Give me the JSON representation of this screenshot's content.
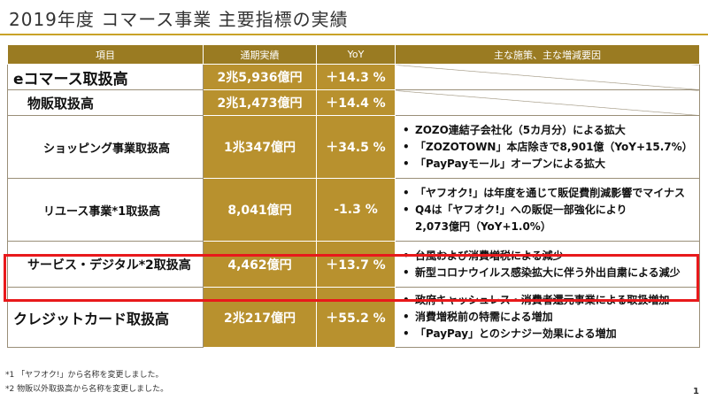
{
  "page_title": "2019年度 コマース事業 主要指標の実績",
  "table": {
    "headers": [
      "項目",
      "通期実績",
      "YoY",
      "主な施策、主な増減要因"
    ],
    "rows": [
      {
        "item": "eコマース取扱高",
        "value": "2兆5,936億円",
        "yoy": "＋14.3 %",
        "notes": []
      },
      {
        "item": "物販取扱高",
        "value": "2兆1,473億円",
        "yoy": "＋14.4 %",
        "notes": []
      },
      {
        "item": "ショッピング事業取扱高",
        "value": "1兆347億円",
        "yoy": "＋34.5 %",
        "notes": [
          "ZOZO連結子会社化（5カ月分）による拡大",
          "「ZOZOTOWN」本店除きで8,901億（YoY+15.7%）",
          "「PayPayモール」オープンによる拡大"
        ]
      },
      {
        "item": "リユース事業*1取扱高",
        "value": "8,041億円",
        "yoy": "-1.3 %",
        "notes": [
          "「ヤフオク!」は年度を通じて販促費削減影響でマイナス",
          "Q4は「ヤフオク!」への販促一部強化により",
          "2,073億円（YoY+1.0%）"
        ]
      },
      {
        "item": "サービス・デジタル*2取扱高",
        "value": "4,462億円",
        "yoy": "＋13.7 %",
        "notes": [
          "台風および消費増税による減少",
          "新型コロナウイルス感染拡大に伴う外出自粛による減少"
        ]
      },
      {
        "item": "クレジットカード取扱高",
        "value": "2兆217億円",
        "yoy": "＋55.2 %",
        "notes": [
          "政府キャッシュレス・消費者還元事業による取扱増加",
          "消費増税前の特需による増加",
          "「PayPay」とのシナジー効果による増加"
        ]
      }
    ]
  },
  "footnotes": [
    "*1 「ヤフオク!」から名称を変更しました。",
    "*2 物販以外取扱高から名称を変更しました。"
  ],
  "page_number": "1"
}
